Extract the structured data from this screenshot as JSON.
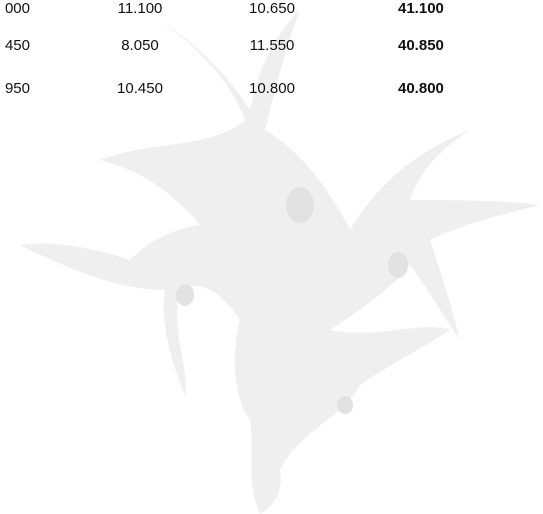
{
  "table": {
    "rows": [
      [
        "000",
        "11.100",
        "10.650",
        "41.100"
      ],
      [
        "450",
        "8.050",
        "11.550",
        "40.850"
      ],
      [
        "950",
        "10.450",
        "10.800",
        "40.800"
      ]
    ]
  }
}
